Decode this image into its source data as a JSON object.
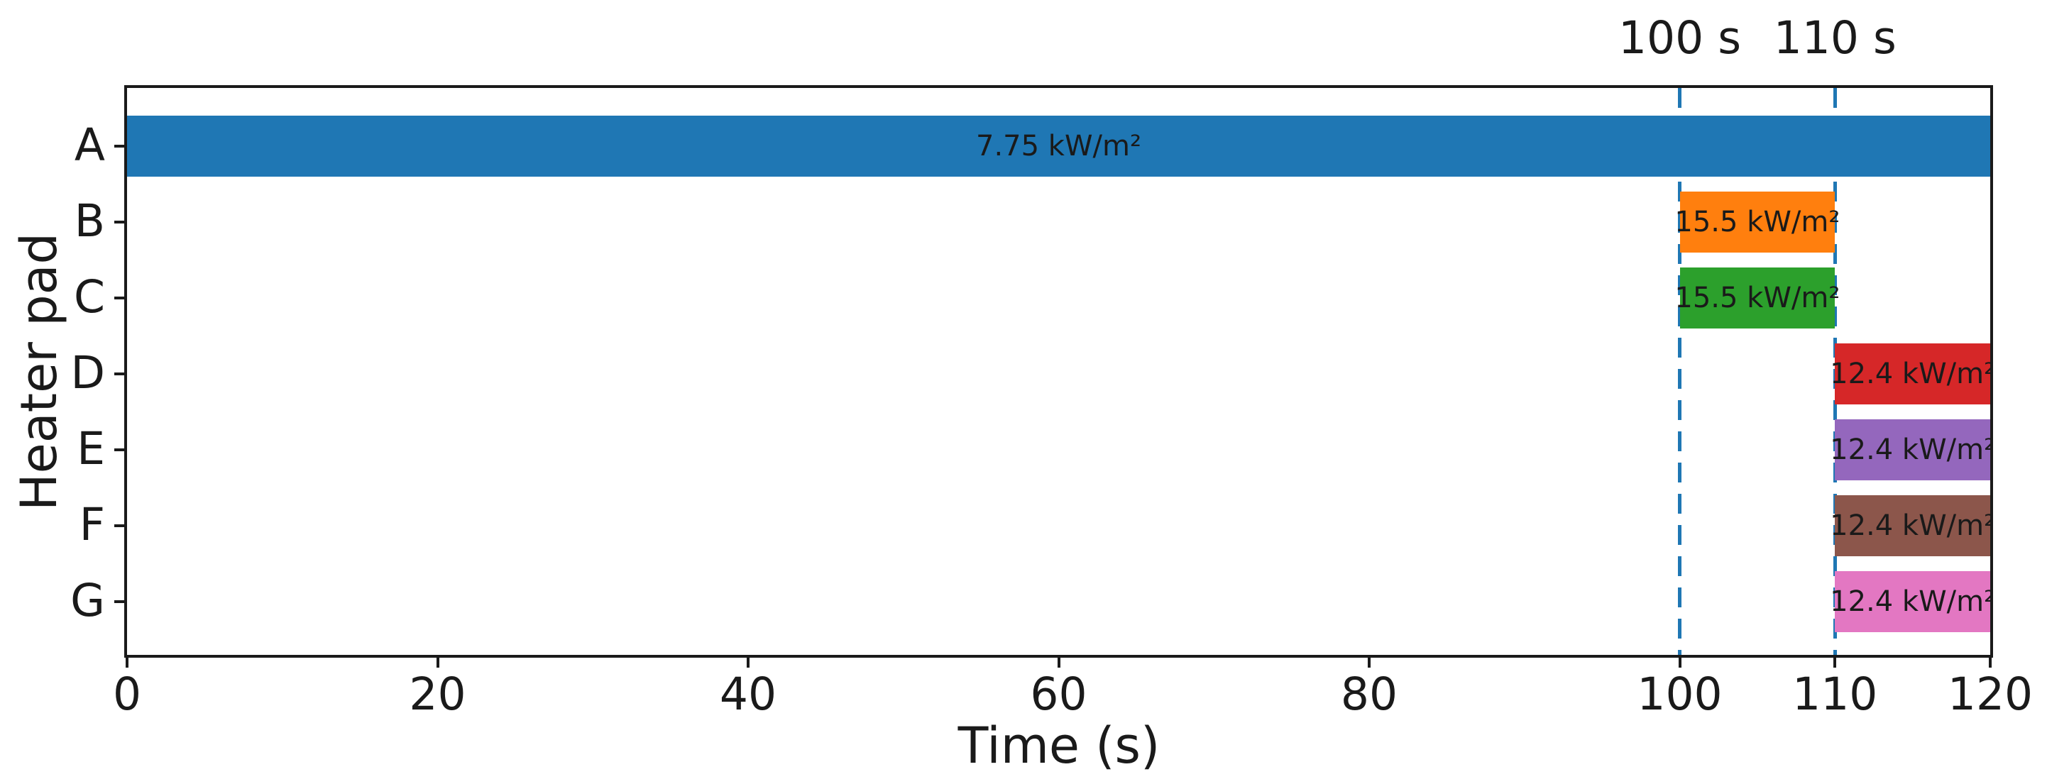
{
  "chart_data": {
    "type": "bar",
    "subtype": "horizontal-gantt",
    "title": "",
    "xlabel": "Time (s)",
    "ylabel": "Heater pad",
    "xlim": [
      0,
      120
    ],
    "xticks": [
      0,
      20,
      40,
      60,
      80,
      100,
      110,
      120
    ],
    "categories": [
      "A",
      "B",
      "C",
      "D",
      "E",
      "F",
      "G"
    ],
    "grid": false,
    "legend": "none",
    "axis_color": "#1a1a1a",
    "bars": [
      {
        "pad": "A",
        "start_s": 0,
        "end_s": 120,
        "label": "7.75 kW/m²",
        "color": "#1f77b4"
      },
      {
        "pad": "B",
        "start_s": 100,
        "end_s": 110,
        "label": "15.5 kW/m²",
        "color": "#ff7f0e"
      },
      {
        "pad": "C",
        "start_s": 100,
        "end_s": 110,
        "label": "15.5 kW/m²",
        "color": "#2ca02c"
      },
      {
        "pad": "D",
        "start_s": 110,
        "end_s": 120,
        "label": "12.4 kW/m²",
        "color": "#d62728"
      },
      {
        "pad": "E",
        "start_s": 110,
        "end_s": 120,
        "label": "12.4 kW/m²",
        "color": "#9467bd"
      },
      {
        "pad": "F",
        "start_s": 110,
        "end_s": 120,
        "label": "12.4 kW/m²",
        "color": "#8c564b"
      },
      {
        "pad": "G",
        "start_s": 110,
        "end_s": 120,
        "label": "12.4 kW/m²",
        "color": "#e377c2"
      }
    ],
    "vlines": [
      {
        "x": 100,
        "label": "100 s",
        "color": "#1f77b4",
        "style": "dashed"
      },
      {
        "x": 110,
        "label": "110 s",
        "color": "#1f77b4",
        "style": "dashed"
      }
    ]
  }
}
